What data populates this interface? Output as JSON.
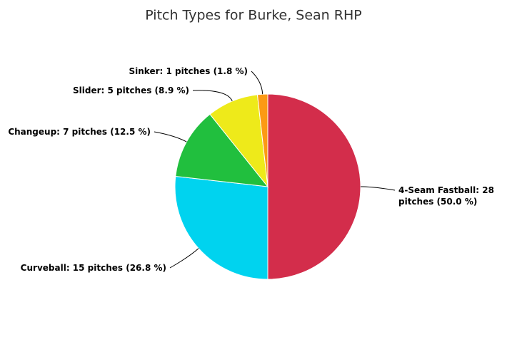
{
  "chart_data": {
    "type": "pie",
    "title": "Pitch Types for Burke, Sean RHP",
    "labels": [
      "4-Seam Fastball: 28 pitches (50.0 %)",
      "Curveball: 15 pitches (26.8 %)",
      "Changeup: 7 pitches (12.5 %)",
      "Slider: 5 pitches (8.9 %)",
      "Sinker: 1 pitches (1.8 %)"
    ],
    "values": [
      28,
      15,
      7,
      5,
      1
    ],
    "colors": [
      "#d32d4b",
      "#00d3ef",
      "#21bf3e",
      "#eeea1a",
      "#fc9a14"
    ]
  }
}
